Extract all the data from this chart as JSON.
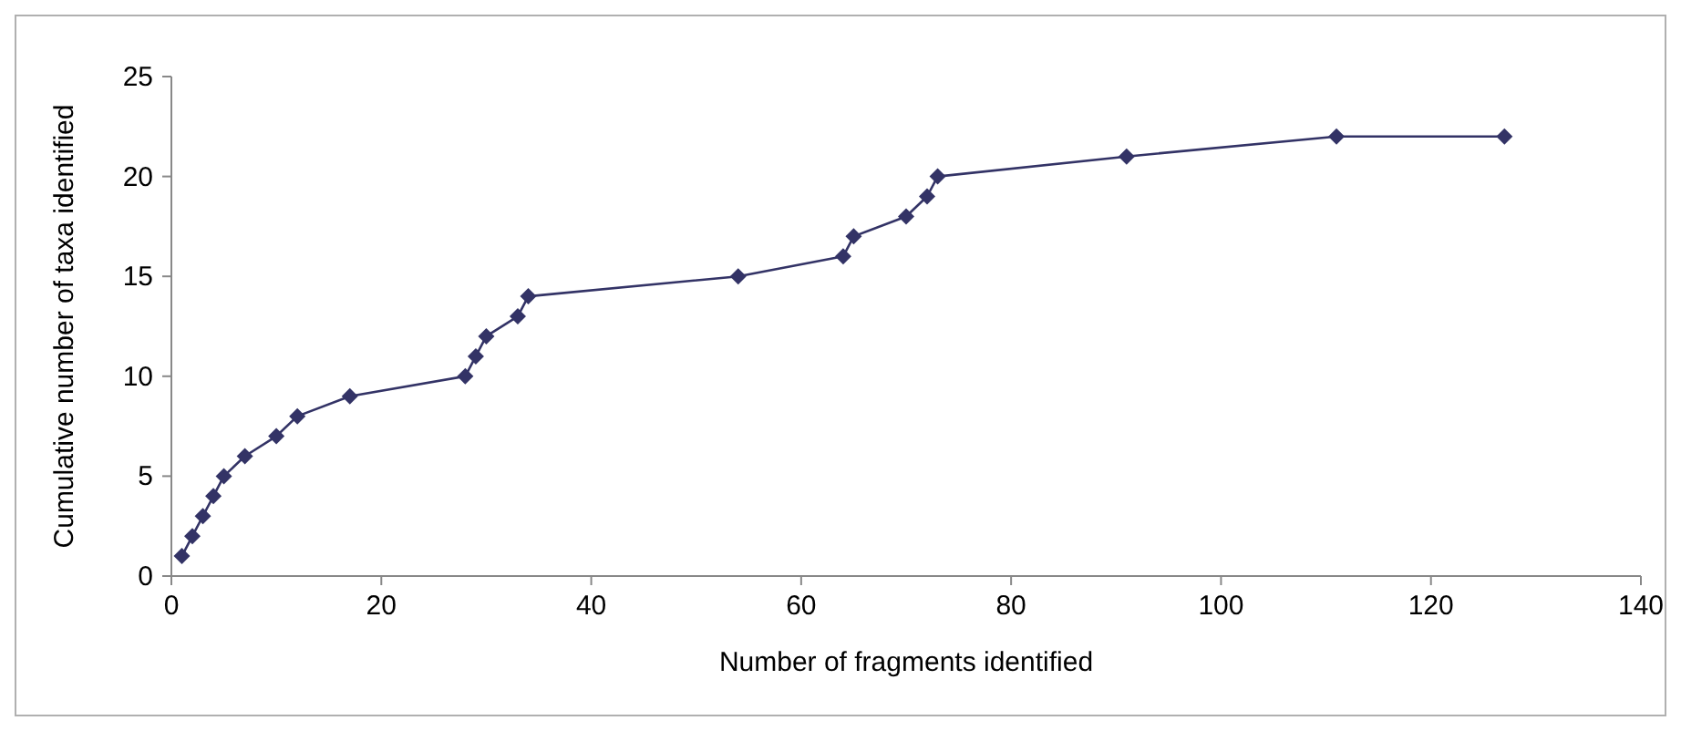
{
  "chart_data": {
    "type": "line",
    "xlabel": "Number of fragments identified",
    "ylabel": "Cumulative number of taxa identified",
    "series": [
      {
        "color": "#333366",
        "x": [
          1,
          2,
          3,
          4,
          5,
          7,
          10,
          12,
          17,
          28,
          29,
          30,
          33,
          34,
          54,
          64,
          65,
          70,
          72,
          73,
          91,
          111,
          127
        ],
        "values": [
          1,
          2,
          3,
          4,
          5,
          6,
          7,
          8,
          9,
          10,
          11,
          12,
          13,
          14,
          15,
          16,
          17,
          18,
          19,
          20,
          21,
          22,
          22
        ]
      }
    ],
    "xlim": [
      0,
      140
    ],
    "xticks": [
      0,
      20,
      40,
      60,
      80,
      100,
      120,
      140
    ],
    "ylim": [
      0,
      25
    ],
    "yticks": [
      0,
      5,
      10,
      15,
      20,
      25
    ],
    "grid": false,
    "marker": "diamond",
    "line_style": "solid"
  }
}
